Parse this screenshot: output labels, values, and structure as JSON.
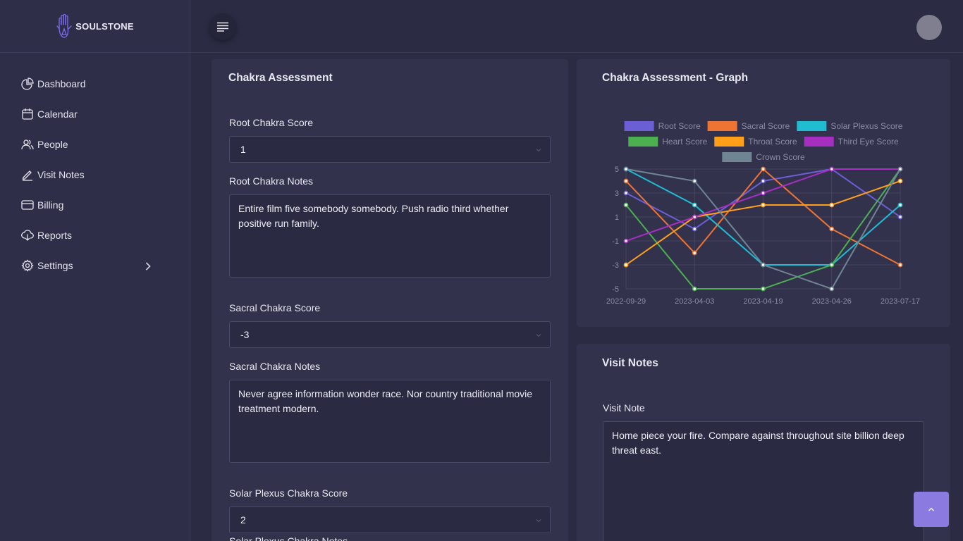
{
  "brand": {
    "name": "SOULSTONE"
  },
  "sidebar": {
    "items": [
      {
        "label": "Dashboard",
        "icon": "pie-chart-icon"
      },
      {
        "label": "Calendar",
        "icon": "calendar-icon"
      },
      {
        "label": "People",
        "icon": "people-icon"
      },
      {
        "label": "Visit Notes",
        "icon": "pencil-icon"
      },
      {
        "label": "Billing",
        "icon": "credit-card-icon"
      },
      {
        "label": "Reports",
        "icon": "cloud-download-icon"
      },
      {
        "label": "Settings",
        "icon": "gear-icon",
        "has_submenu": true
      }
    ]
  },
  "topbar": {
    "menu_icon": "hamburger-icon",
    "avatar_icon": "avatar"
  },
  "assessment": {
    "title": "Chakra Assessment",
    "fields": [
      {
        "score_label": "Root Chakra Score",
        "score_value": "1",
        "notes_label": "Root Chakra Notes",
        "notes_value": "Entire film five somebody somebody. Push radio third whether positive run family."
      },
      {
        "score_label": "Sacral Chakra Score",
        "score_value": "-3",
        "notes_label": "Sacral Chakra Notes",
        "notes_value": "Never agree information wonder race. Nor country traditional movie treatment modern."
      },
      {
        "score_label": "Solar Plexus Chakra Score",
        "score_value": "2",
        "notes_label": "Solar Plexus Chakra Notes",
        "notes_value": ""
      }
    ]
  },
  "graph": {
    "title": "Chakra Assessment - Graph"
  },
  "chart_data": {
    "type": "line",
    "x": [
      "2022-09-29",
      "2023-04-03",
      "2023-04-19",
      "2023-04-26",
      "2023-07-17"
    ],
    "yticks": [
      5,
      3,
      1,
      -1,
      -3,
      -5
    ],
    "ylim": [
      -5,
      5
    ],
    "grid": true,
    "legend": "top",
    "series": [
      {
        "name": "Root Score",
        "color": "#6c5fd6",
        "values": [
          3,
          0,
          4,
          5,
          1
        ]
      },
      {
        "name": "Sacral Score",
        "color": "#ee7434",
        "values": [
          4,
          -2,
          5,
          0,
          -3
        ]
      },
      {
        "name": "Solar Plexus Score",
        "color": "#1fbcd2",
        "values": [
          5,
          2,
          -3,
          -3,
          2
        ]
      },
      {
        "name": "Heart Score",
        "color": "#4caf50",
        "values": [
          2,
          -5,
          -5,
          -3,
          5
        ]
      },
      {
        "name": "Throat Score",
        "color": "#ff9f1a",
        "values": [
          -3,
          1,
          2,
          2,
          4
        ]
      },
      {
        "name": "Third Eye Score",
        "color": "#a62fc0",
        "values": [
          -1,
          1,
          3,
          5,
          5
        ]
      },
      {
        "name": "Crown Score",
        "color": "#6f8593",
        "values": [
          5,
          4,
          -3,
          -5,
          5
        ]
      }
    ]
  },
  "visit_notes": {
    "title": "Visit Notes",
    "label": "Visit Note",
    "value": "Home piece your fire. Compare against throughout site billion deep threat east."
  },
  "scroll_top": {
    "icon": "chevron-up-icon"
  }
}
